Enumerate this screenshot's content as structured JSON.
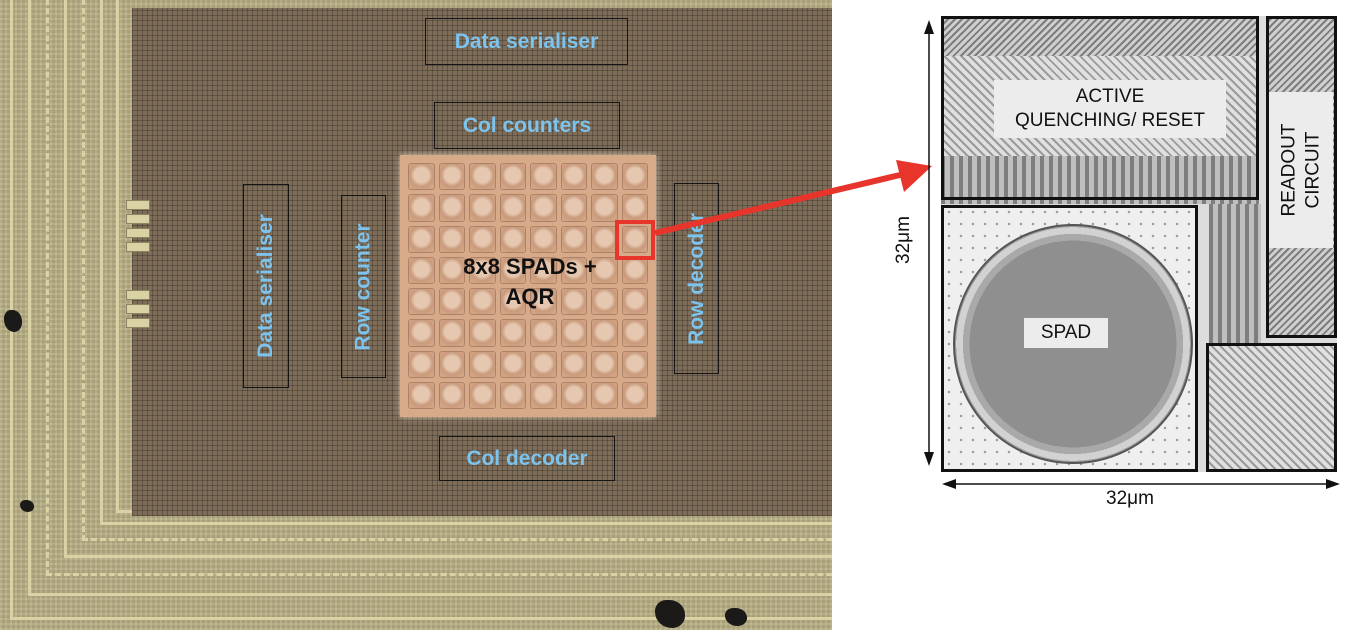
{
  "micrograph": {
    "blocks": {
      "data_serialiser_top": "Data serialiser",
      "col_counters": "Col counters",
      "data_serialiser_left": "Data serialiser",
      "row_counter": "Row counter",
      "row_decoder": "Row decoder",
      "col_decoder": "Col decoder"
    },
    "array_label_line1": "8x8 SPADs +",
    "array_label_line2": "AQR"
  },
  "layout": {
    "active_line1": "ACTIVE",
    "active_line2": "QUENCHING/ RESET",
    "readout_line1": "READOUT",
    "readout_line2": "CIRCUIT",
    "spad": "SPAD",
    "width_dim": "32μm",
    "height_dim": "32μm"
  },
  "colors": {
    "block_label": "#7cc3ee",
    "marker": "#e8352b",
    "outline": "#151515"
  }
}
